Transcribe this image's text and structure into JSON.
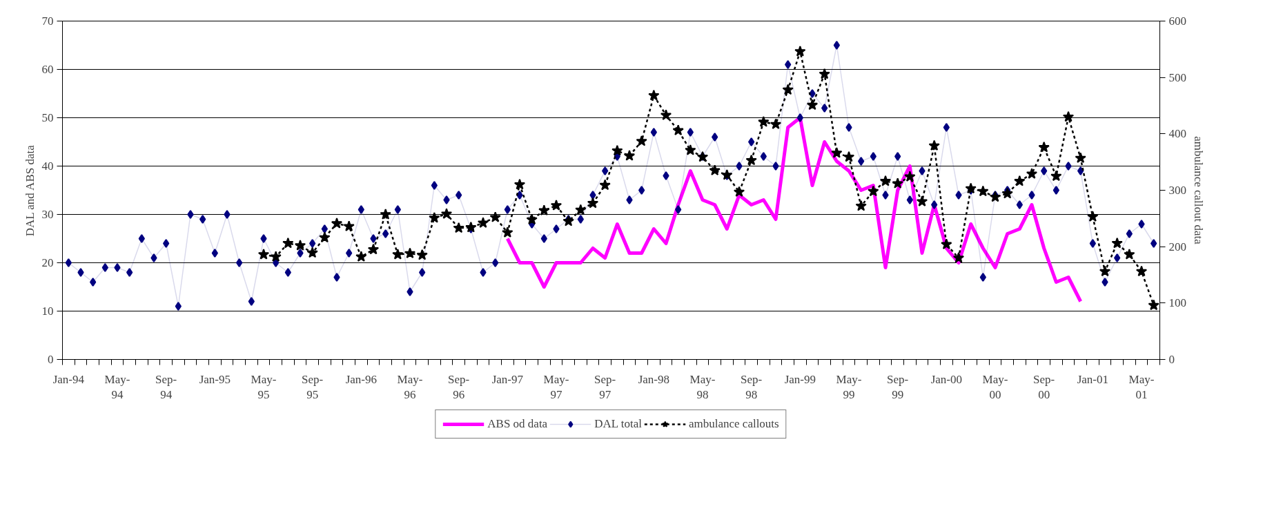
{
  "chart_data": {
    "type": "line",
    "xlabel": null,
    "ylabel": "DAL and ABS data",
    "y2label": "ambulance callout data",
    "categories": [
      "Jan-94",
      null,
      null,
      null,
      "May-\n94",
      null,
      null,
      null,
      "Sep-\n94",
      null,
      null,
      null,
      "Jan-95",
      null,
      null,
      null,
      "May-\n95",
      null,
      null,
      null,
      "Sep-\n95",
      null,
      null,
      null,
      "Jan-96",
      null,
      null,
      null,
      "May-\n96",
      null,
      null,
      null,
      "Sep-\n96",
      null,
      null,
      null,
      "Jan-97",
      null,
      null,
      null,
      "May-\n97",
      null,
      null,
      null,
      "Sep-\n97",
      null,
      null,
      null,
      "Jan-98",
      null,
      null,
      null,
      "May-\n98",
      null,
      null,
      null,
      "Sep-\n98",
      null,
      null,
      null,
      "Jan-99",
      null,
      null,
      null,
      "May-\n99",
      null,
      null,
      null,
      "Sep-\n99",
      null,
      null,
      null,
      "Jan-00",
      null,
      null,
      null,
      "May-\n00",
      null,
      null,
      null,
      "Sep-\n00",
      null,
      null,
      null,
      "Jan-01",
      null,
      null,
      null,
      "May-\n01",
      null
    ],
    "series": [
      {
        "name": "ABS od data",
        "color": "#ff00ff",
        "marker": "none",
        "values": [
          null,
          null,
          null,
          null,
          null,
          null,
          null,
          null,
          null,
          null,
          null,
          null,
          null,
          null,
          null,
          null,
          null,
          null,
          null,
          null,
          null,
          null,
          null,
          null,
          null,
          null,
          null,
          null,
          null,
          null,
          null,
          null,
          null,
          null,
          null,
          null,
          25,
          20,
          20,
          15,
          20,
          20,
          20,
          23,
          21,
          28,
          22,
          22,
          27,
          24,
          32,
          39,
          33,
          32,
          27,
          34,
          32,
          33,
          29,
          48,
          50,
          36,
          45,
          41,
          39,
          35,
          36,
          19,
          35,
          40,
          22,
          32,
          23,
          20,
          28,
          23,
          19,
          26,
          27,
          32,
          23,
          16,
          17,
          12,
          null,
          null,
          null,
          null,
          null,
          null
        ]
      },
      {
        "name": "DAL total",
        "color": "#000080",
        "marker": "diamond",
        "values": [
          20,
          18,
          16,
          19,
          19,
          18,
          25,
          21,
          24,
          11,
          30,
          29,
          22,
          30,
          20,
          12,
          25,
          20,
          18,
          22,
          24,
          27,
          17,
          22,
          31,
          25,
          26,
          31,
          14,
          18,
          36,
          33,
          34,
          27,
          18,
          20,
          31,
          34,
          28,
          25,
          27,
          29,
          29,
          34,
          39,
          42,
          33,
          35,
          47,
          38,
          31,
          47,
          42,
          46,
          38,
          40,
          45,
          42,
          40,
          61,
          50,
          55,
          52,
          65,
          48,
          41,
          42,
          34,
          42,
          33,
          39,
          32,
          48,
          34,
          35,
          17,
          34,
          35,
          32,
          34,
          39,
          35,
          40,
          39,
          24,
          16,
          21,
          26,
          28,
          24
        ]
      },
      {
        "name": "ambulance callouts",
        "color": "#000000",
        "marker": "star",
        "line_style": "dashed",
        "axis": "y2",
        "values": [
          null,
          null,
          null,
          null,
          null,
          null,
          null,
          null,
          null,
          null,
          null,
          null,
          null,
          null,
          null,
          null,
          186,
          182,
          206,
          202,
          189,
          216,
          241,
          236,
          182,
          195,
          257,
          186,
          188,
          185,
          251,
          258,
          233,
          234,
          242,
          252,
          225,
          310,
          248,
          264,
          273,
          245,
          265,
          277,
          309,
          370,
          361,
          387,
          468,
          433,
          406,
          371,
          359,
          335,
          327,
          297,
          353,
          421,
          417,
          478,
          546,
          451,
          506,
          366,
          359,
          272,
          298,
          316,
          312,
          324,
          280,
          379,
          204,
          180,
          303,
          298,
          288,
          294,
          316,
          329,
          376,
          325,
          430,
          357,
          253,
          156,
          206,
          186,
          156,
          96
        ]
      }
    ],
    "ylim": [
      0,
      70
    ],
    "yticks": [
      0,
      10,
      20,
      30,
      40,
      50,
      60,
      70
    ],
    "y2lim": [
      0,
      600
    ],
    "y2ticks": [
      0,
      100,
      200,
      300,
      400,
      500,
      600
    ],
    "grid": "y",
    "legend": "bottom"
  }
}
